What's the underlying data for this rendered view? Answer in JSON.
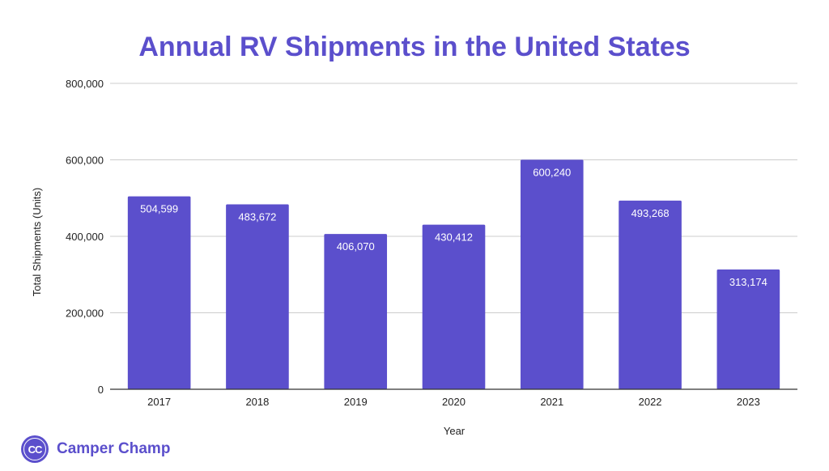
{
  "brand": {
    "logo_text": "CC",
    "name": "Camper Champ"
  },
  "chart_data": {
    "type": "bar",
    "title": "Annual RV Shipments in the United States",
    "xlabel": "Year",
    "ylabel": "Total Shipments (Units)",
    "categories": [
      "2017",
      "2018",
      "2019",
      "2020",
      "2021",
      "2022",
      "2023"
    ],
    "values": [
      504599,
      483672,
      406070,
      430412,
      600240,
      493268,
      313174
    ],
    "data_labels": [
      "504,599",
      "483,672",
      "406,070",
      "430,412",
      "600,240",
      "493,268",
      "313,174"
    ],
    "ylim": [
      0,
      800000
    ],
    "yticks": [
      0,
      200000,
      400000,
      600000,
      800000
    ],
    "ytick_labels": [
      "0",
      "200,000",
      "400,000",
      "600,000",
      "800,000"
    ],
    "grid": true,
    "legend": "none",
    "colors": {
      "bar": "#5b4fcc",
      "title": "#5b4fcc"
    }
  }
}
